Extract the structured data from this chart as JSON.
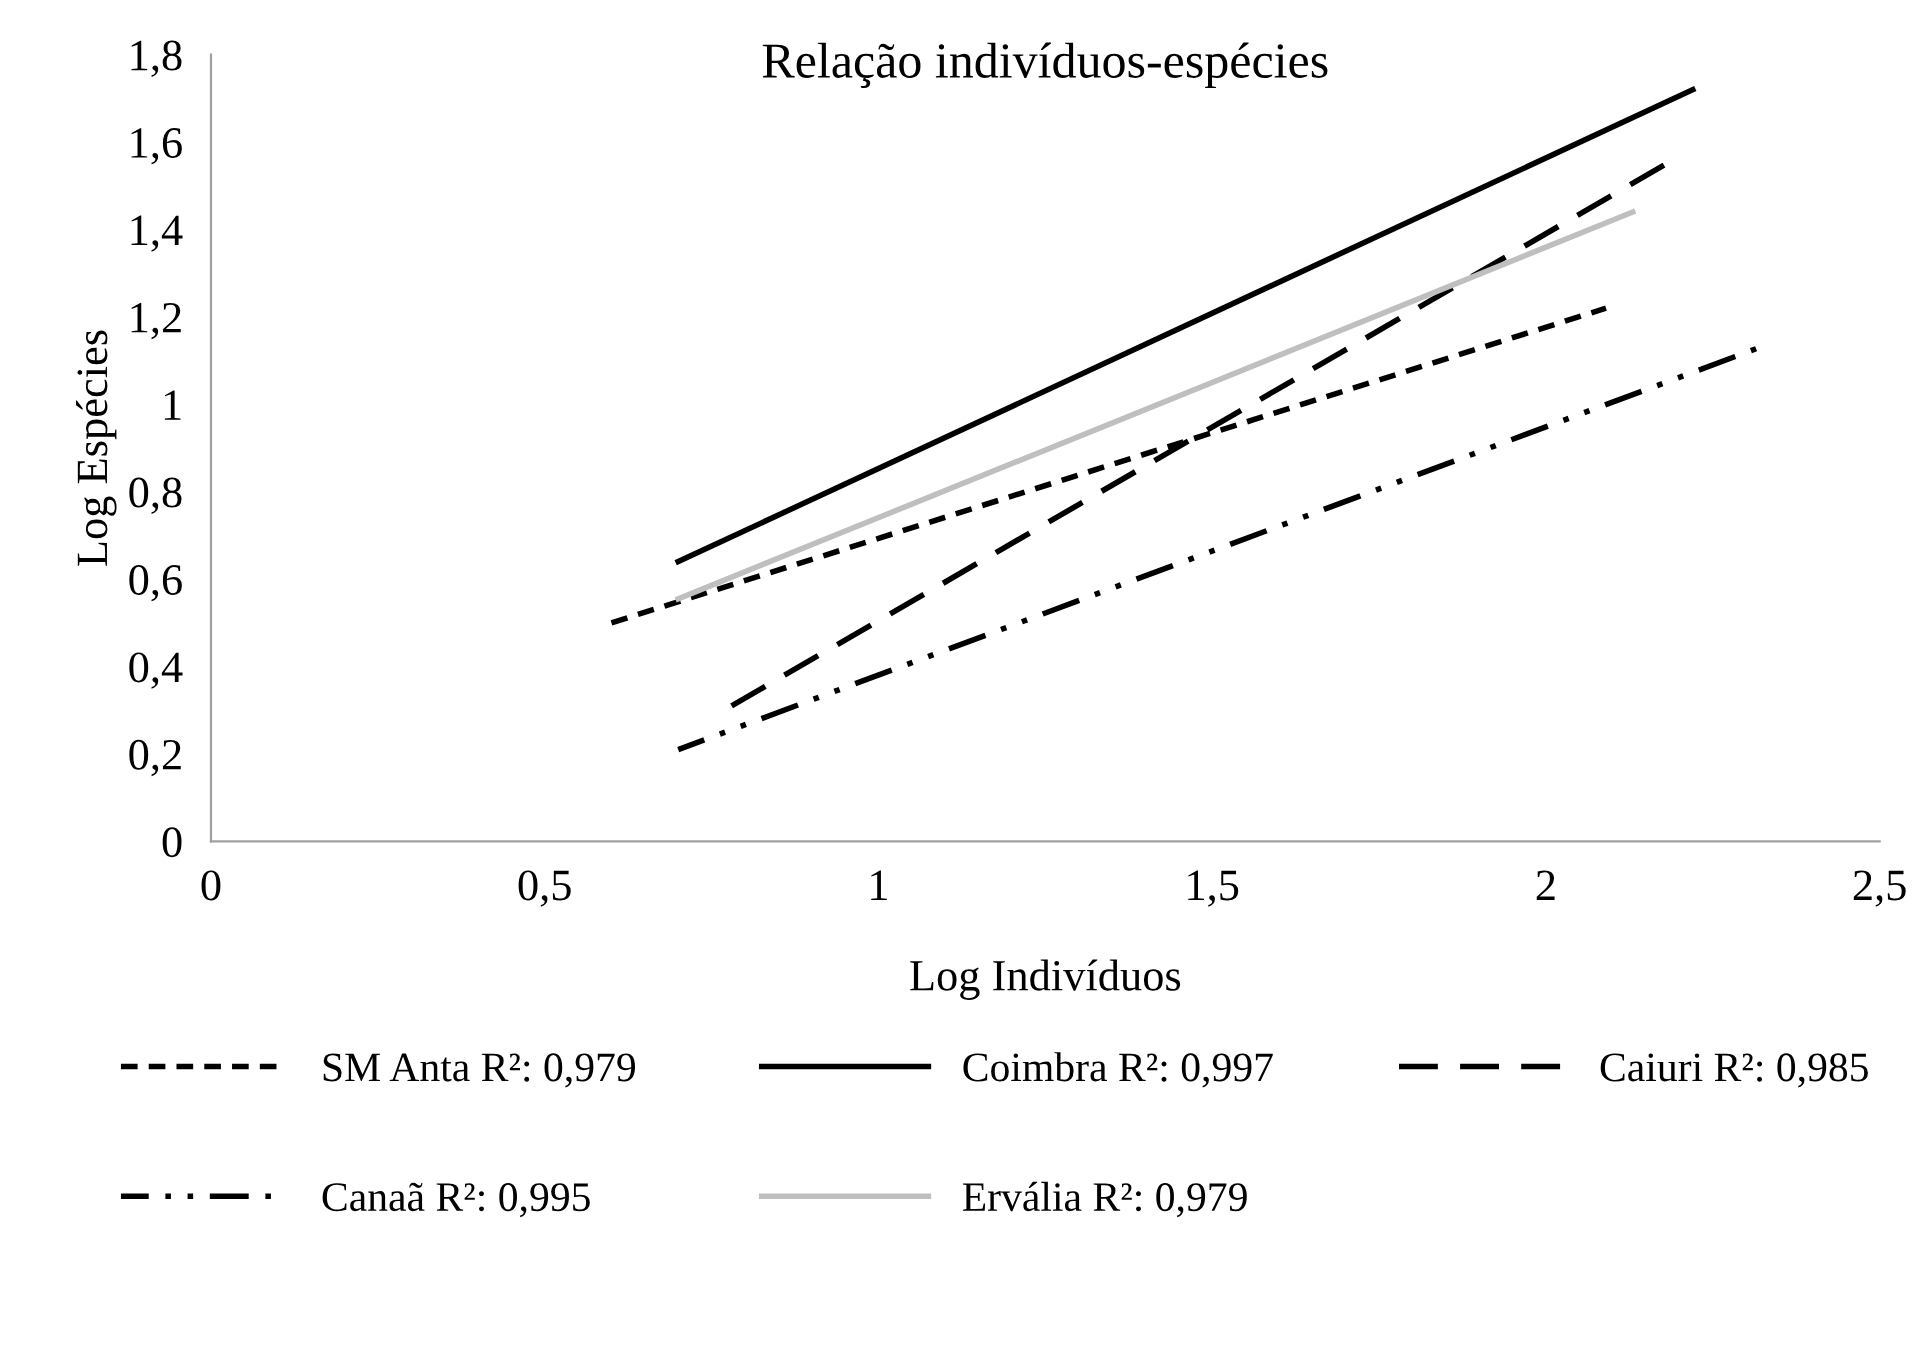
{
  "chart_data": {
    "type": "line",
    "title": "Relação indivíduos-espécies",
    "xlabel": "Log Indivíduos",
    "ylabel": "Log Espécies",
    "xlim": [
      0,
      2.5
    ],
    "ylim": [
      0,
      1.8
    ],
    "xticks": [
      0,
      {
        "value": 0.5,
        "label": "0,5"
      },
      1,
      {
        "value": 1.5,
        "label": "1,5"
      },
      2,
      {
        "value": 2.5,
        "label": "2,5"
      }
    ],
    "yticks": [
      0,
      {
        "value": 0.2,
        "label": "0,2"
      },
      {
        "value": 0.4,
        "label": "0,4"
      },
      {
        "value": 0.6,
        "label": "0,6"
      },
      {
        "value": 0.8,
        "label": "0,8"
      },
      1,
      {
        "value": 1.2,
        "label": "1,2"
      },
      {
        "value": 1.4,
        "label": "1,4"
      },
      {
        "value": 1.6,
        "label": "1,6"
      },
      {
        "value": 1.8,
        "label": "1,8"
      }
    ],
    "grid": false,
    "legend": "bottom",
    "marker": "none",
    "series": [
      {
        "name": "SM Anta R²: 0,979",
        "color": "#000000",
        "line_style": "dotted",
        "x": [
          0.6,
          2.09
        ],
        "values": [
          0.5,
          1.22
        ]
      },
      {
        "name": "Coimbra R²: 0,997",
        "color": "#000000",
        "line_style": "solid",
        "x": [
          0.7,
          2.22
        ],
        "values": [
          0.64,
          1.72
        ]
      },
      {
        "name": "Caiuri R²: 0,985",
        "color": "#000000",
        "line_style": "dashed",
        "x": [
          0.78,
          2.18
        ],
        "values": [
          0.31,
          1.55
        ]
      },
      {
        "name": "Canaã R²: 0,995",
        "color": "#000000",
        "line_style": "dashdotdot",
        "x": [
          0.7,
          2.32
        ],
        "values": [
          0.21,
          1.13
        ]
      },
      {
        "name": "Ervália R²: 0,979",
        "color": "#bfbfbf",
        "line_style": "solid",
        "x": [
          0.7,
          2.13
        ],
        "values": [
          0.555,
          1.44
        ]
      }
    ]
  }
}
